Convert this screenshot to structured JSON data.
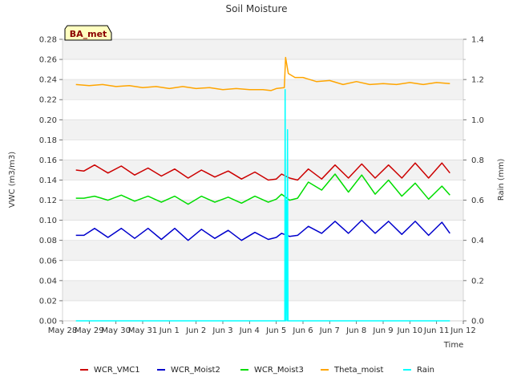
{
  "chart_data": {
    "type": "line",
    "title": "Soil Moisture",
    "badge": "BA_met",
    "xlabel": "Time",
    "ylabel_left": "VWC (m3/m3)",
    "ylabel_right": "Rain (mm)",
    "ylim_left": [
      0.0,
      0.28
    ],
    "ylim_right": [
      0.0,
      1.4
    ],
    "xlim_days": [
      0,
      15
    ],
    "x_ticks": [
      {
        "label": "May 28",
        "day": 0
      },
      {
        "label": "May 29",
        "day": 1
      },
      {
        "label": "May 30",
        "day": 2
      },
      {
        "label": "May 31",
        "day": 3
      },
      {
        "label": "Jun 1",
        "day": 4
      },
      {
        "label": "Jun 2",
        "day": 5
      },
      {
        "label": "Jun 3",
        "day": 6
      },
      {
        "label": "Jun 4",
        "day": 7
      },
      {
        "label": "Jun 5",
        "day": 8
      },
      {
        "label": "Jun 6",
        "day": 9
      },
      {
        "label": "Jun 7",
        "day": 10
      },
      {
        "label": "Jun 8",
        "day": 11
      },
      {
        "label": "Jun 9",
        "day": 12
      },
      {
        "label": "Jun 10",
        "day": 13
      },
      {
        "label": "Jun 11",
        "day": 14
      },
      {
        "label": "Jun 12",
        "day": 15
      }
    ],
    "y_ticks_left": [
      {
        "label": "0.00",
        "value": 0.0
      },
      {
        "label": "0.02",
        "value": 0.02
      },
      {
        "label": "0.04",
        "value": 0.04
      },
      {
        "label": "0.06",
        "value": 0.06
      },
      {
        "label": "0.08",
        "value": 0.08
      },
      {
        "label": "0.10",
        "value": 0.1
      },
      {
        "label": "0.12",
        "value": 0.12
      },
      {
        "label": "0.14",
        "value": 0.14
      },
      {
        "label": "0.16",
        "value": 0.16
      },
      {
        "label": "0.18",
        "value": 0.18
      },
      {
        "label": "0.20",
        "value": 0.2
      },
      {
        "label": "0.22",
        "value": 0.22
      },
      {
        "label": "0.24",
        "value": 0.24
      },
      {
        "label": "0.26",
        "value": 0.26
      },
      {
        "label": "0.28",
        "value": 0.28
      }
    ],
    "y_ticks_right": [
      {
        "label": "0.0",
        "value": 0.0
      },
      {
        "label": "0.2",
        "value": 0.2
      },
      {
        "label": "0.4",
        "value": 0.4
      },
      {
        "label": "0.6",
        "value": 0.6
      },
      {
        "label": "0.8",
        "value": 0.8
      },
      {
        "label": "1.0",
        "value": 1.0
      },
      {
        "label": "1.2",
        "value": 1.2
      },
      {
        "label": "1.4",
        "value": 1.4
      }
    ],
    "series": [
      {
        "name": "WCR_VMC1",
        "color": "#cc0000",
        "axis": "left",
        "x": [
          0.5,
          0.8,
          1.2,
          1.7,
          2.2,
          2.7,
          3.2,
          3.7,
          4.2,
          4.7,
          5.2,
          5.7,
          6.2,
          6.7,
          7.2,
          7.7,
          8.0,
          8.2,
          8.5,
          8.8,
          9.2,
          9.7,
          10.2,
          10.7,
          11.2,
          11.7,
          12.2,
          12.7,
          13.2,
          13.7,
          14.2,
          14.5
        ],
        "values": [
          0.15,
          0.149,
          0.155,
          0.147,
          0.154,
          0.145,
          0.152,
          0.144,
          0.151,
          0.142,
          0.15,
          0.143,
          0.149,
          0.141,
          0.148,
          0.14,
          0.141,
          0.146,
          0.142,
          0.14,
          0.151,
          0.141,
          0.155,
          0.142,
          0.156,
          0.142,
          0.155,
          0.142,
          0.157,
          0.142,
          0.157,
          0.147
        ]
      },
      {
        "name": "WCR_Moist2",
        "color": "#0000cc",
        "axis": "left",
        "x": [
          0.5,
          0.8,
          1.2,
          1.7,
          2.2,
          2.7,
          3.2,
          3.7,
          4.2,
          4.7,
          5.2,
          5.7,
          6.2,
          6.7,
          7.2,
          7.7,
          8.0,
          8.2,
          8.5,
          8.8,
          9.2,
          9.7,
          10.2,
          10.7,
          11.2,
          11.7,
          12.2,
          12.7,
          13.2,
          13.7,
          14.2,
          14.5
        ],
        "values": [
          0.085,
          0.085,
          0.092,
          0.083,
          0.092,
          0.082,
          0.092,
          0.081,
          0.092,
          0.08,
          0.091,
          0.082,
          0.09,
          0.08,
          0.088,
          0.081,
          0.083,
          0.087,
          0.084,
          0.085,
          0.094,
          0.087,
          0.099,
          0.087,
          0.1,
          0.087,
          0.099,
          0.086,
          0.099,
          0.085,
          0.098,
          0.087
        ]
      },
      {
        "name": "WCR_Moist3",
        "color": "#00dd00",
        "axis": "left",
        "x": [
          0.5,
          0.8,
          1.2,
          1.7,
          2.2,
          2.7,
          3.2,
          3.7,
          4.2,
          4.7,
          5.2,
          5.7,
          6.2,
          6.7,
          7.2,
          7.7,
          8.0,
          8.2,
          8.5,
          8.8,
          9.2,
          9.7,
          10.2,
          10.7,
          11.2,
          11.7,
          12.2,
          12.7,
          13.2,
          13.7,
          14.2,
          14.5
        ],
        "values": [
          0.122,
          0.122,
          0.124,
          0.12,
          0.125,
          0.119,
          0.124,
          0.118,
          0.124,
          0.116,
          0.124,
          0.118,
          0.123,
          0.117,
          0.124,
          0.118,
          0.121,
          0.126,
          0.12,
          0.122,
          0.138,
          0.13,
          0.146,
          0.128,
          0.145,
          0.126,
          0.14,
          0.124,
          0.137,
          0.121,
          0.134,
          0.125
        ]
      },
      {
        "name": "Theta_moist",
        "color": "#ffa500",
        "axis": "left",
        "x": [
          0.5,
          1.0,
          1.5,
          2.0,
          2.5,
          3.0,
          3.5,
          4.0,
          4.5,
          5.0,
          5.5,
          6.0,
          6.5,
          7.0,
          7.5,
          7.8,
          8.0,
          8.3,
          8.35,
          8.45,
          8.7,
          9.0,
          9.5,
          10.0,
          10.5,
          11.0,
          11.5,
          12.0,
          12.5,
          13.0,
          13.5,
          14.0,
          14.5
        ],
        "values": [
          0.235,
          0.234,
          0.235,
          0.233,
          0.234,
          0.232,
          0.233,
          0.231,
          0.233,
          0.231,
          0.232,
          0.23,
          0.231,
          0.23,
          0.23,
          0.229,
          0.231,
          0.232,
          0.262,
          0.246,
          0.242,
          0.242,
          0.238,
          0.239,
          0.235,
          0.238,
          0.235,
          0.236,
          0.235,
          0.237,
          0.235,
          0.237,
          0.236
        ]
      },
      {
        "name": "Rain",
        "color": "#00ffff",
        "axis": "right",
        "x": [
          0.5,
          8.2,
          8.32,
          8.33,
          8.35,
          8.38,
          8.4,
          8.42,
          8.44,
          8.46,
          14.5
        ],
        "values": [
          0.0,
          0.0,
          0.0,
          1.15,
          0.0,
          0.6,
          0.0,
          0.95,
          0.0,
          0.0,
          0.0
        ]
      }
    ]
  }
}
